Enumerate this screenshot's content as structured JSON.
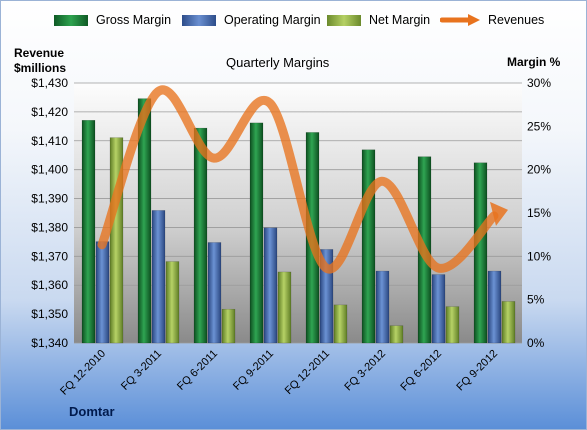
{
  "chart_data": {
    "type": "bar",
    "title": "Quarterly Margins",
    "categories": [
      "FQ 12-2010",
      "FQ 3-2011",
      "FQ 6-2011",
      "FQ 9-2011",
      "FQ 12-2011",
      "FQ 3-2012",
      "FQ 6-2012",
      "FQ 9-2012"
    ],
    "series": [
      {
        "name": "Gross Margin",
        "axis": "right",
        "type": "bar",
        "color": "#1e8a3e",
        "values": [
          25.7,
          28.2,
          24.8,
          25.4,
          24.3,
          22.3,
          21.5,
          20.8
        ]
      },
      {
        "name": "Operating Margin",
        "axis": "right",
        "type": "bar",
        "color": "#4e73b8",
        "values": [
          11.7,
          15.3,
          11.6,
          13.3,
          10.8,
          8.3,
          7.9,
          8.3
        ]
      },
      {
        "name": "Net Margin",
        "axis": "right",
        "type": "bar",
        "color": "#98b74a",
        "values": [
          23.7,
          9.4,
          3.9,
          8.2,
          4.4,
          2.0,
          4.2,
          4.8
        ]
      },
      {
        "name": "Revenues",
        "axis": "left",
        "type": "line",
        "color": "#e8731e",
        "values": [
          1374,
          1427,
          1404,
          1423,
          1366,
          1396,
          1366,
          1384
        ]
      }
    ],
    "ylabel": "Revenue $millions",
    "y2label": "Margin %",
    "ylim": [
      1340,
      1430
    ],
    "yticks": [
      "$1,340",
      "$1,350",
      "$1,360",
      "$1,370",
      "$1,380",
      "$1,390",
      "$1,400",
      "$1,410",
      "$1,420",
      "$1,430"
    ],
    "y2lim": [
      0,
      30
    ],
    "y2ticks": [
      "0%",
      "5%",
      "10%",
      "15%",
      "20%",
      "25%",
      "30%"
    ],
    "grid": true,
    "legend": "top",
    "footer": "Domtar"
  }
}
